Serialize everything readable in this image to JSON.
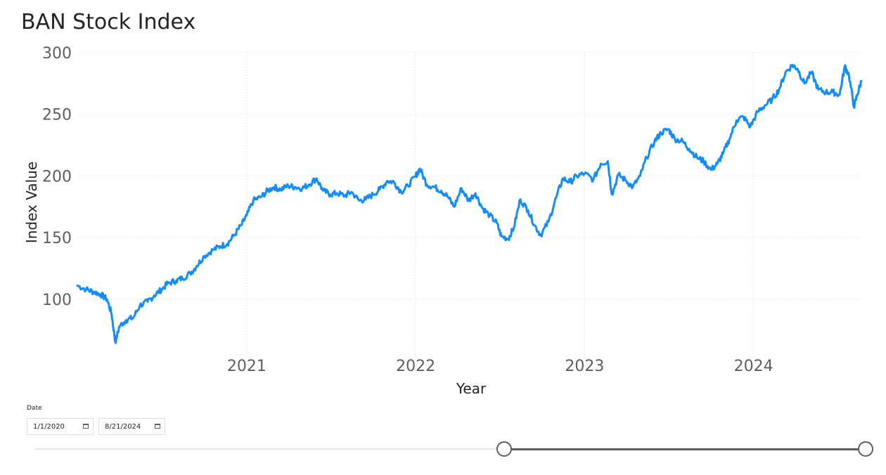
{
  "chart_data": {
    "type": "line",
    "title": "BAN Stock Index",
    "xlabel": "Year",
    "ylabel": "Index Value",
    "ylim": [
      52,
      300
    ],
    "xlim": [
      "2020-01-01",
      "2024-08-21"
    ],
    "y_ticks": [
      100,
      150,
      200,
      250,
      300
    ],
    "x_ticks": [
      "2021",
      "2022",
      "2023",
      "2024"
    ],
    "grid": true,
    "color": "#118DFF",
    "series": [
      {
        "x": [
          "2020-01-01",
          "2020-01-20",
          "2020-02-05",
          "2020-02-20",
          "2020-03-05",
          "2020-03-15",
          "2020-03-23",
          "2020-04-01",
          "2020-04-15",
          "2020-05-01",
          "2020-05-15",
          "2020-06-01",
          "2020-06-15",
          "2020-07-01",
          "2020-07-15",
          "2020-08-01",
          "2020-08-15",
          "2020-09-01",
          "2020-09-15",
          "2020-10-01",
          "2020-10-20",
          "2020-11-05",
          "2020-11-20",
          "2020-12-05",
          "2020-12-20",
          "2021-01-01",
          "2021-01-15",
          "2021-02-01",
          "2021-02-15",
          "2021-03-01",
          "2021-03-15",
          "2021-04-01",
          "2021-04-15",
          "2021-05-01",
          "2021-05-15",
          "2021-06-01",
          "2021-06-15",
          "2021-07-01",
          "2021-07-15",
          "2021-08-01",
          "2021-08-15",
          "2021-09-01",
          "2021-09-15",
          "2021-10-01",
          "2021-10-15",
          "2021-11-01",
          "2021-11-15",
          "2021-12-01",
          "2021-12-15",
          "2022-01-01",
          "2022-01-10",
          "2022-01-25",
          "2022-02-10",
          "2022-02-25",
          "2022-03-10",
          "2022-03-25",
          "2022-04-10",
          "2022-04-25",
          "2022-05-10",
          "2022-05-25",
          "2022-06-10",
          "2022-06-25",
          "2022-07-05",
          "2022-07-20",
          "2022-08-01",
          "2022-08-15",
          "2022-09-01",
          "2022-09-15",
          "2022-09-28",
          "2022-10-15",
          "2022-11-01",
          "2022-11-15",
          "2022-12-01",
          "2022-12-15",
          "2023-01-01",
          "2023-01-20",
          "2023-02-05",
          "2023-02-20",
          "2023-03-01",
          "2023-03-15",
          "2023-04-01",
          "2023-04-15",
          "2023-05-01",
          "2023-05-15",
          "2023-06-01",
          "2023-06-15",
          "2023-07-01",
          "2023-07-15",
          "2023-08-01",
          "2023-08-15",
          "2023-09-01",
          "2023-09-15",
          "2023-10-01",
          "2023-10-15",
          "2023-10-27",
          "2023-11-10",
          "2023-11-25",
          "2023-12-10",
          "2023-12-25",
          "2024-01-10",
          "2024-01-25",
          "2024-02-10",
          "2024-02-25",
          "2024-03-10",
          "2024-03-25",
          "2024-04-05",
          "2024-04-20",
          "2024-05-05",
          "2024-05-20",
          "2024-06-05",
          "2024-06-20",
          "2024-07-05",
          "2024-07-16",
          "2024-07-25",
          "2024-08-05",
          "2024-08-12",
          "2024-08-21"
        ],
        "y": [
          111,
          108,
          106,
          104,
          100,
          88,
          65,
          78,
          83,
          85,
          95,
          98,
          103,
          108,
          113,
          115,
          117,
          121,
          127,
          135,
          140,
          143,
          145,
          152,
          160,
          168,
          180,
          183,
          188,
          191,
          189,
          192,
          191,
          190,
          193,
          198,
          188,
          185,
          186,
          184,
          187,
          180,
          181,
          185,
          189,
          196,
          195,
          187,
          192,
          200,
          206,
          193,
          191,
          188,
          184,
          175,
          190,
          180,
          186,
          174,
          168,
          162,
          151,
          149,
          158,
          181,
          172,
          160,
          152,
          163,
          183,
          198,
          195,
          200,
          202,
          197,
          210,
          212,
          185,
          201,
          196,
          191,
          200,
          215,
          228,
          235,
          238,
          230,
          228,
          222,
          215,
          212,
          205,
          210,
          218,
          230,
          245,
          248,
          240,
          252,
          257,
          262,
          270,
          284,
          290,
          287,
          275,
          284,
          270,
          268,
          268,
          266,
          289,
          282,
          256,
          266,
          277
        ]
      }
    ]
  },
  "slicer": {
    "label": "Date",
    "start_date": "1/1/2020",
    "end_date": "8/21/2024",
    "range_start_fraction": 0.567,
    "range_end_fraction": 1.0
  }
}
